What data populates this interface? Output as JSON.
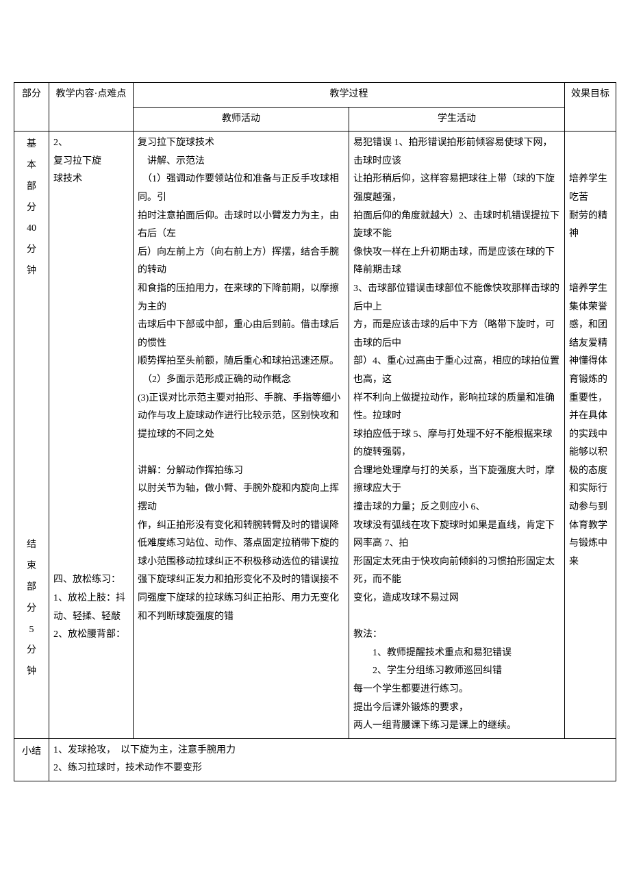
{
  "header": {
    "part": "部分",
    "content": "教学内容·点难点",
    "process": "教学过程",
    "teacher": "教师活动",
    "student": "学生活动",
    "effect": "效果目标"
  },
  "row1": {
    "part": "基\n本\n部\n分\n40\n分\n钟\n\n\n\n\n\n\n\n\n\n\n\n\n结\n束\n部\n分\n5\n分\n钟",
    "content": "2、\n复习拉下旋\n球技术\n\n\n\n\n\n\n\n\n\n\n\n\n\n\n\n\n\n\n\n\n\n四、放松练习：\n1、放松上肢：抖动、轻揉、轻敲 2、放松腰背部：",
    "teacher": "复习拉下旋球技术\n　讲解、示范法\n　（1）强调动作要领站位和准备与正反手攻球相同。引\n拍时注意拍面后仰。击球时以小臂发力为主，由右后（左\n后）向左前上方（向右前上方）挥摆，结合手腕的转动\n和食指的压拍用力，在来球的下降前期，以摩擦为主的\n击球后中下部或中部，重心由后到前。借击球后的惯性\n顺势挥拍至头前额，随后重心和球拍迅速还原。\n　（2）多面示范形成正确的动作概念\n(3)正误对比示范主要对拍形、手腕、手指等细小动作与攻上旋球动作进行比较示范，区别快攻和提拉球的不同之处\n\n讲解：分解动作挥拍练习\n以肘关节为轴，做小臂、手腕外旋和内旋向上挥摆动\n作，纠正拍形没有变化和转腕转臂及时的错误降低难度练习站位、动作、落点固定拉稍带下旋的球小范围移动拉球纠正不积极移动选位的错误拉强下旋球纠正发力和拍形变化不及时的错误接不同强度下旋球的拉球练习纠正拍形、用力无变化和不判断球旋强度的错",
    "student": "易犯错误 1、拍形错误拍形前倾容易使球下网，击球时应该\n让拍形稍后仰，这样容易把球往上带（球的下旋强度越强，\n拍面后仰的角度就越大）2、击球时机错误提拉下旋球不能\n像快攻一样在上升初期击球，而是应该在球的下降前期击球\n3、击球部位错误击球部位不能像快攻那样击球的后中上\n方，而是应该击球的后中下方（略带下旋时，可击球的后中\n部）4、重心过高由于重心过高，相应的球拍位置也高，这\n样不利向上做提拉动作，影响拉球的质量和准确性。拉球时\n球拍应低于球 5、摩与打处理不好不能根据来球的旋转强弱，\n合理地处理摩与打的关系，当下旋强度大时，摩擦球应大于\n撞击球的力量；反之则应小 6、\n攻球没有弧线在攻下旋球时如果是直线，肯定下网率高 7、拍\n形固定太死由于快攻向前倾斜的习惯拍形固定太死，而不能\n变化，造成攻球不易过网\n\n教法：\n　　1、教师提醒技术重点和易犯错误\n　　2、学生分组练习教师巡回纠错\n每一个学生都要进行练习。\n提出今后课外锻炼的要求，\n两人一组背腰课下练习是课上的继续。",
    "effect": "\n\n培养学生吃苦\n耐劳的精神\n\n\n培养学生集体荣誉感，和团结友爱精神懂得体育锻炼的重要性，并在具体的实践中能够以积极的态度和实际行动参与到体育教学与锻炼中来"
  },
  "row2": {
    "part": "小结",
    "summary": "1、发球抢攻，　以下旋为主，注意手腕用力\n2、练习拉球时，技术动作不要变形"
  }
}
